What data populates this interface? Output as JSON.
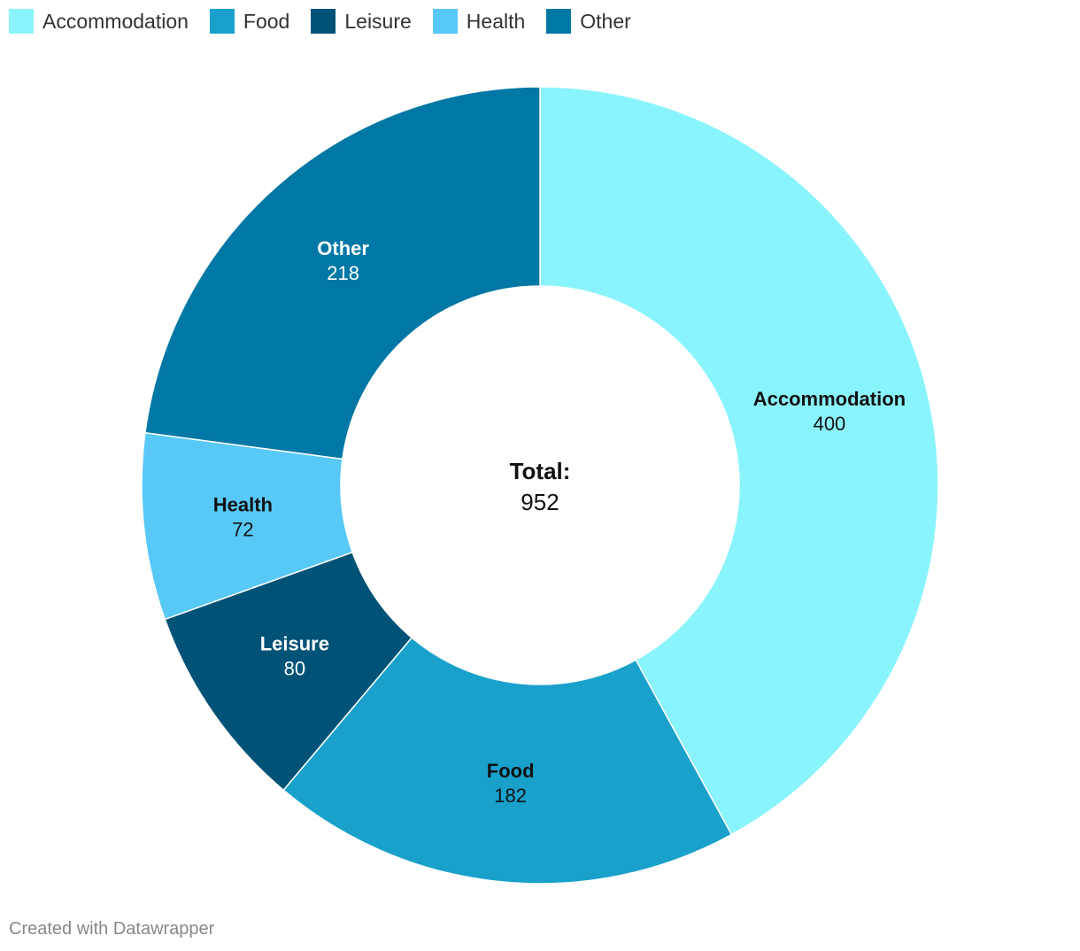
{
  "chart_data": {
    "type": "pie",
    "variant": "donut",
    "categories": [
      "Accommodation",
      "Food",
      "Leisure",
      "Health",
      "Other"
    ],
    "values": [
      400,
      182,
      80,
      72,
      218
    ],
    "colors": [
      "#8af4fd",
      "#19a1cc",
      "#005277",
      "#58c8f6",
      "#0078a5"
    ],
    "label_colors": [
      "#111111",
      "#111111",
      "#ffffff",
      "#111111",
      "#ffffff"
    ],
    "center": {
      "title": "Total:",
      "value": "952"
    },
    "legend_position": "top-left"
  },
  "credit": "Created with Datawrapper"
}
